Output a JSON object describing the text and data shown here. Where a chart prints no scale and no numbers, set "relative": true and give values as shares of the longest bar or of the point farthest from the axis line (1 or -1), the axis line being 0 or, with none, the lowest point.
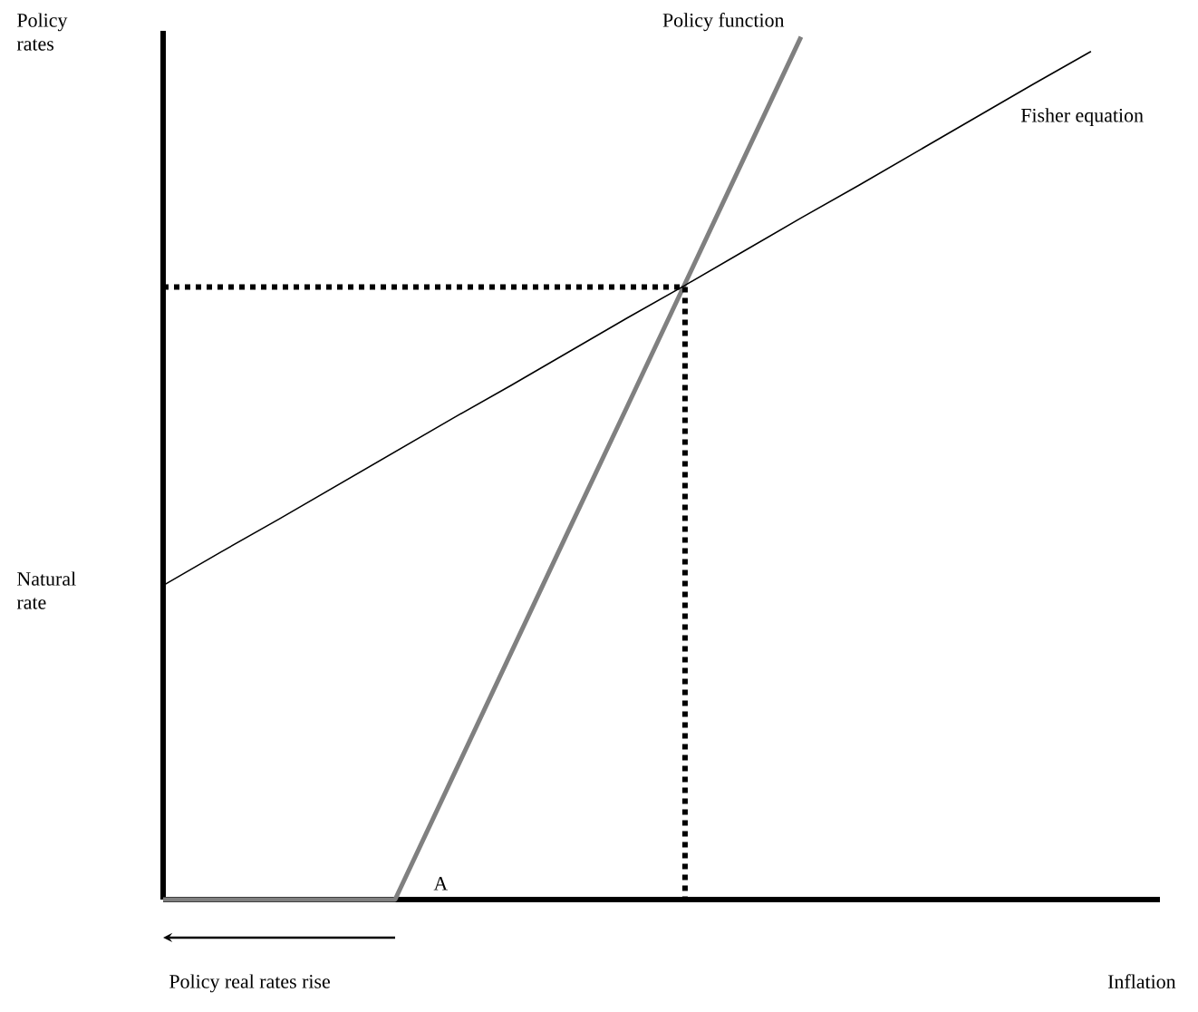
{
  "chart_data": {
    "type": "line",
    "relative": true,
    "xlabel": "Inflation",
    "ylabel": "Policy rates",
    "categories": [
      null,
      null,
      null,
      null,
      null,
      null,
      null,
      null,
      null,
      null,
      null,
      null,
      null,
      null,
      null,
      null,
      null
    ],
    "series": [
      {
        "name": "Policy function",
        "color": "#808080",
        "line_style": "solid",
        "values": [
          0,
          0,
          0,
          0,
          0,
          0.143,
          0.286,
          0.429,
          0.571,
          0.714,
          0.857,
          1,
          null,
          null,
          null,
          null,
          null
        ]
      },
      {
        "name": "Fisher equation",
        "color": "#000000",
        "line_style": "solid",
        "values": [
          0.364,
          0.403,
          0.441,
          0.48,
          0.519,
          0.558,
          0.596,
          0.635,
          0.674,
          0.712,
          0.751,
          0.79,
          0.828,
          0.867,
          0.906,
          0.945,
          0.983
        ]
      },
      {
        "color": "#000000",
        "line_style": "dotted",
        "values": [
          0.71,
          0.71,
          0.71,
          0.71,
          0.71,
          0.71,
          0.71,
          0.71,
          0.71,
          0.71,
          null,
          null,
          null,
          null,
          null,
          null,
          null
        ]
      }
    ],
    "annotations": [
      "Policy real rates rise",
      "Natural rate",
      "A"
    ]
  }
}
